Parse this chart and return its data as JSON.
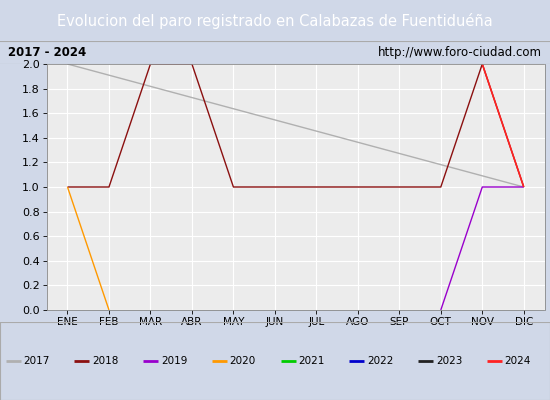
{
  "title": "Evolucion del paro registrado en Calabazas de Fuentiduéña",
  "subtitle_left": "2017 - 2024",
  "subtitle_right": "http://www.foro-ciudad.com",
  "title_bg_color": "#4472b8",
  "title_text_color": "#ffffff",
  "subtitle_bg_color": "#e0e0e0",
  "plot_bg_color": "#ececec",
  "grid_color": "#ffffff",
  "months": [
    "ENE",
    "FEB",
    "MAR",
    "ABR",
    "MAY",
    "JUN",
    "JUL",
    "AGO",
    "SEP",
    "OCT",
    "NOV",
    "DIC"
  ],
  "ylim": [
    0.0,
    2.0
  ],
  "series": {
    "2017": {
      "color": "#b0b0b0",
      "linewidth": 1.0,
      "data": [
        2.0,
        null,
        null,
        null,
        null,
        null,
        null,
        null,
        null,
        null,
        null,
        1.0
      ]
    },
    "2018": {
      "color": "#8b1010",
      "linewidth": 1.0,
      "data": [
        1.0,
        1.0,
        2.0,
        2.0,
        1.0,
        1.0,
        1.0,
        1.0,
        1.0,
        1.0,
        2.0,
        1.0
      ]
    },
    "2019": {
      "color": "#9900cc",
      "linewidth": 1.0,
      "data": [
        null,
        null,
        null,
        null,
        null,
        null,
        null,
        null,
        null,
        0.0,
        1.0,
        1.0
      ]
    },
    "2020": {
      "color": "#ff9900",
      "linewidth": 1.0,
      "data": [
        1.0,
        0.0,
        null,
        null,
        null,
        null,
        null,
        null,
        null,
        null,
        null,
        null
      ]
    },
    "2021": {
      "color": "#00cc00",
      "linewidth": 1.0,
      "data": [
        null,
        null,
        null,
        null,
        null,
        null,
        null,
        null,
        null,
        null,
        null,
        null
      ]
    },
    "2022": {
      "color": "#0000cc",
      "linewidth": 1.0,
      "data": [
        null,
        null,
        null,
        null,
        null,
        null,
        null,
        null,
        null,
        null,
        null,
        null
      ]
    },
    "2023": {
      "color": "#222222",
      "linewidth": 1.0,
      "data": [
        null,
        null,
        null,
        null,
        null,
        null,
        null,
        null,
        null,
        null,
        null,
        null
      ]
    },
    "2024": {
      "color": "#ff2222",
      "linewidth": 1.2,
      "data": [
        null,
        null,
        null,
        null,
        null,
        null,
        null,
        null,
        null,
        null,
        2.0,
        1.0
      ]
    }
  },
  "series_order": [
    "2017",
    "2018",
    "2019",
    "2020",
    "2021",
    "2022",
    "2023",
    "2024"
  ],
  "legend_order": [
    "2017",
    "2018",
    "2019",
    "2020",
    "2021",
    "2022",
    "2023",
    "2024"
  ]
}
